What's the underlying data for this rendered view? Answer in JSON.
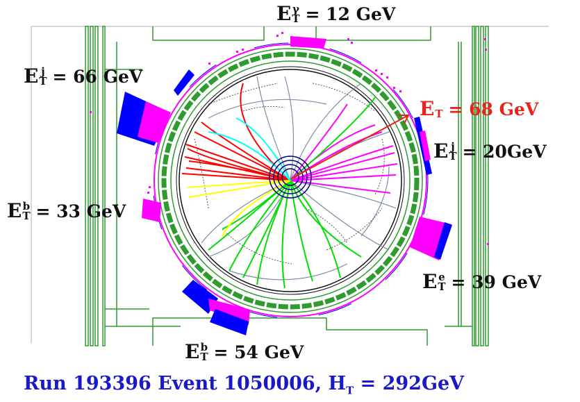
{
  "labels": {
    "photon": {
      "sym": "E",
      "sup": "γ",
      "sub": "T",
      "value": "= 12 GeV"
    },
    "jet1": {
      "sym": "E",
      "sup": "j",
      "sub": "T",
      "value": "= 66 GeV"
    },
    "met": {
      "sym": "E",
      "sub": "T",
      "value": "= 68 GeV"
    },
    "jet2": {
      "sym": "E",
      "sup": "j",
      "sub": "T",
      "value": "= 20GeV"
    },
    "bjet1": {
      "sym": "E",
      "sup": "b",
      "sub": "T",
      "value": "= 33 GeV"
    },
    "electron": {
      "sym": "E",
      "sup": "e",
      "sub": "T",
      "value": "= 39 GeV"
    },
    "bjet2": {
      "sym": "E",
      "sup": "b",
      "sub": "T",
      "value": "= 54 GeV"
    }
  },
  "caption": {
    "text": "Run 193396 Event 1050006, H",
    "sub": "T",
    "value": " = 292GeV"
  },
  "colors": {
    "detector_frame": "#2e9b2e",
    "em_calorimeter": "#ff00ff",
    "had_calorimeter": "#0000ff",
    "jet_tracks": "#ff0000",
    "bjet_tracks": "#00dd00",
    "electron_tracks": "#ff00ff",
    "soft_tracks_a": "#ffff00",
    "soft_tracks_b": "#00ffff",
    "other_tracks": "#7a8da8",
    "met_arrow": "#e8231c",
    "caption": "#1919c8"
  }
}
